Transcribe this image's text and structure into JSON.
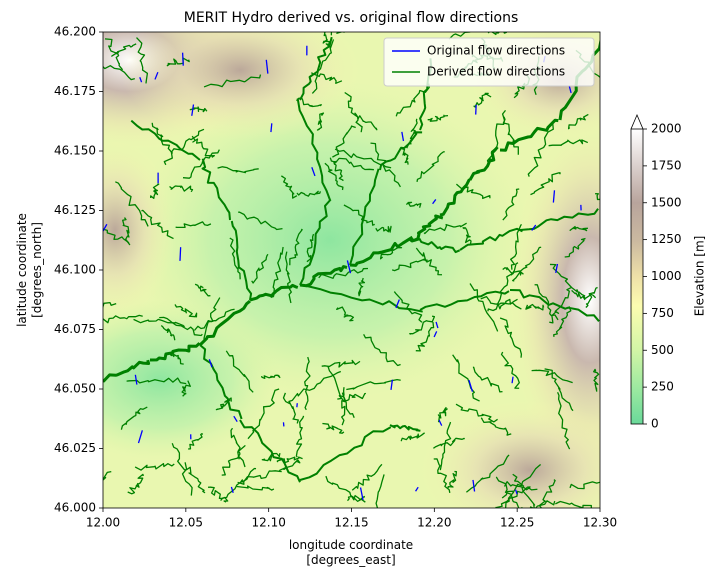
{
  "chart_data": {
    "type": "map",
    "title": "MERIT Hydro derived vs. original flow directions",
    "x_label": "longitude coordinate\n[degrees_east]",
    "y_label": "latitude coordinate\n[degrees_north]",
    "xlim": [
      12.0,
      12.3
    ],
    "xticks": [
      {
        "value": 12.0,
        "label": "12.00"
      },
      {
        "value": 12.05,
        "label": "12.05"
      },
      {
        "value": 12.1,
        "label": "12.10"
      },
      {
        "value": 12.15,
        "label": "12.15"
      },
      {
        "value": 12.2,
        "label": "12.20"
      },
      {
        "value": 12.25,
        "label": "12.25"
      },
      {
        "value": 12.3,
        "label": "12.30"
      }
    ],
    "ylim": [
      46.0,
      46.2
    ],
    "yticks": [
      {
        "value": 46.0,
        "label": "46.000"
      },
      {
        "value": 46.025,
        "label": "46.025"
      },
      {
        "value": 46.05,
        "label": "46.050"
      },
      {
        "value": 46.075,
        "label": "46.075"
      },
      {
        "value": 46.1,
        "label": "46.100"
      },
      {
        "value": 46.125,
        "label": "46.125"
      },
      {
        "value": 46.15,
        "label": "46.150"
      },
      {
        "value": 46.175,
        "label": "46.175"
      },
      {
        "value": 46.2,
        "label": "46.200"
      }
    ],
    "series": [
      {
        "name": "Original flow directions",
        "color": "#0000ff"
      },
      {
        "name": "Derived flow directions",
        "color": "#008000"
      }
    ],
    "legend": "upper right",
    "colorbar": {
      "label": "Elevation [m]",
      "lim": [
        0,
        2000
      ],
      "ticks": [
        0,
        250,
        500,
        750,
        1000,
        1250,
        1500,
        1750,
        2000
      ],
      "extend": "max"
    }
  }
}
